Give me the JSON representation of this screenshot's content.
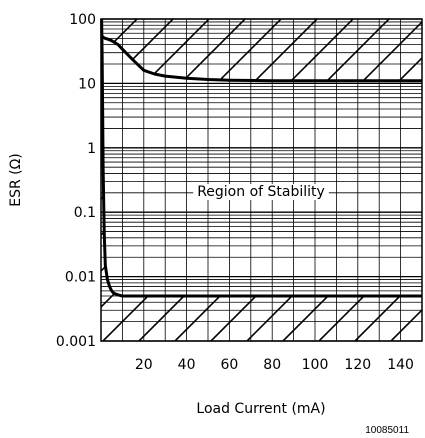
{
  "figure_ref": "10085011",
  "chart_data": {
    "type": "line",
    "xlabel": "Load Current (mA)",
    "ylabel": "ESR (Ω)",
    "x_scale": "linear",
    "y_scale": "log",
    "xlim": [
      0,
      150
    ],
    "ylim": [
      0.001,
      100
    ],
    "x_ticks": [
      20,
      40,
      60,
      80,
      100,
      120,
      140
    ],
    "y_ticks": [
      0.001,
      0.01,
      0.1,
      1,
      10,
      100
    ],
    "y_tick_labels": [
      "0.001",
      "0.01",
      "0.1",
      "1",
      "10",
      "100"
    ],
    "grid": true,
    "annotation": "Region of Stability",
    "series": [
      {
        "role": "upper_boundary",
        "x": [
          0.3,
          1,
          2,
          3,
          5,
          8,
          10,
          15,
          20,
          25,
          30,
          40,
          50,
          60,
          80,
          100,
          120,
          140,
          150
        ],
        "y": [
          55,
          52,
          50,
          49,
          46,
          40,
          34,
          23,
          16,
          14,
          13,
          12,
          11.5,
          11.2,
          11,
          11,
          11,
          11,
          11
        ]
      },
      {
        "role": "lower_boundary",
        "x": [
          0.3,
          0.5,
          0.8,
          1,
          1.5,
          2,
          3,
          4,
          5,
          6,
          8,
          10,
          15,
          20,
          40,
          60,
          80,
          100,
          120,
          140,
          150
        ],
        "y": [
          100,
          30,
          3,
          0.5,
          0.05,
          0.015,
          0.009,
          0.007,
          0.006,
          0.0055,
          0.0052,
          0.005,
          0.005,
          0.005,
          0.005,
          0.005,
          0.005,
          0.005,
          0.005,
          0.005,
          0.005
        ]
      }
    ]
  }
}
